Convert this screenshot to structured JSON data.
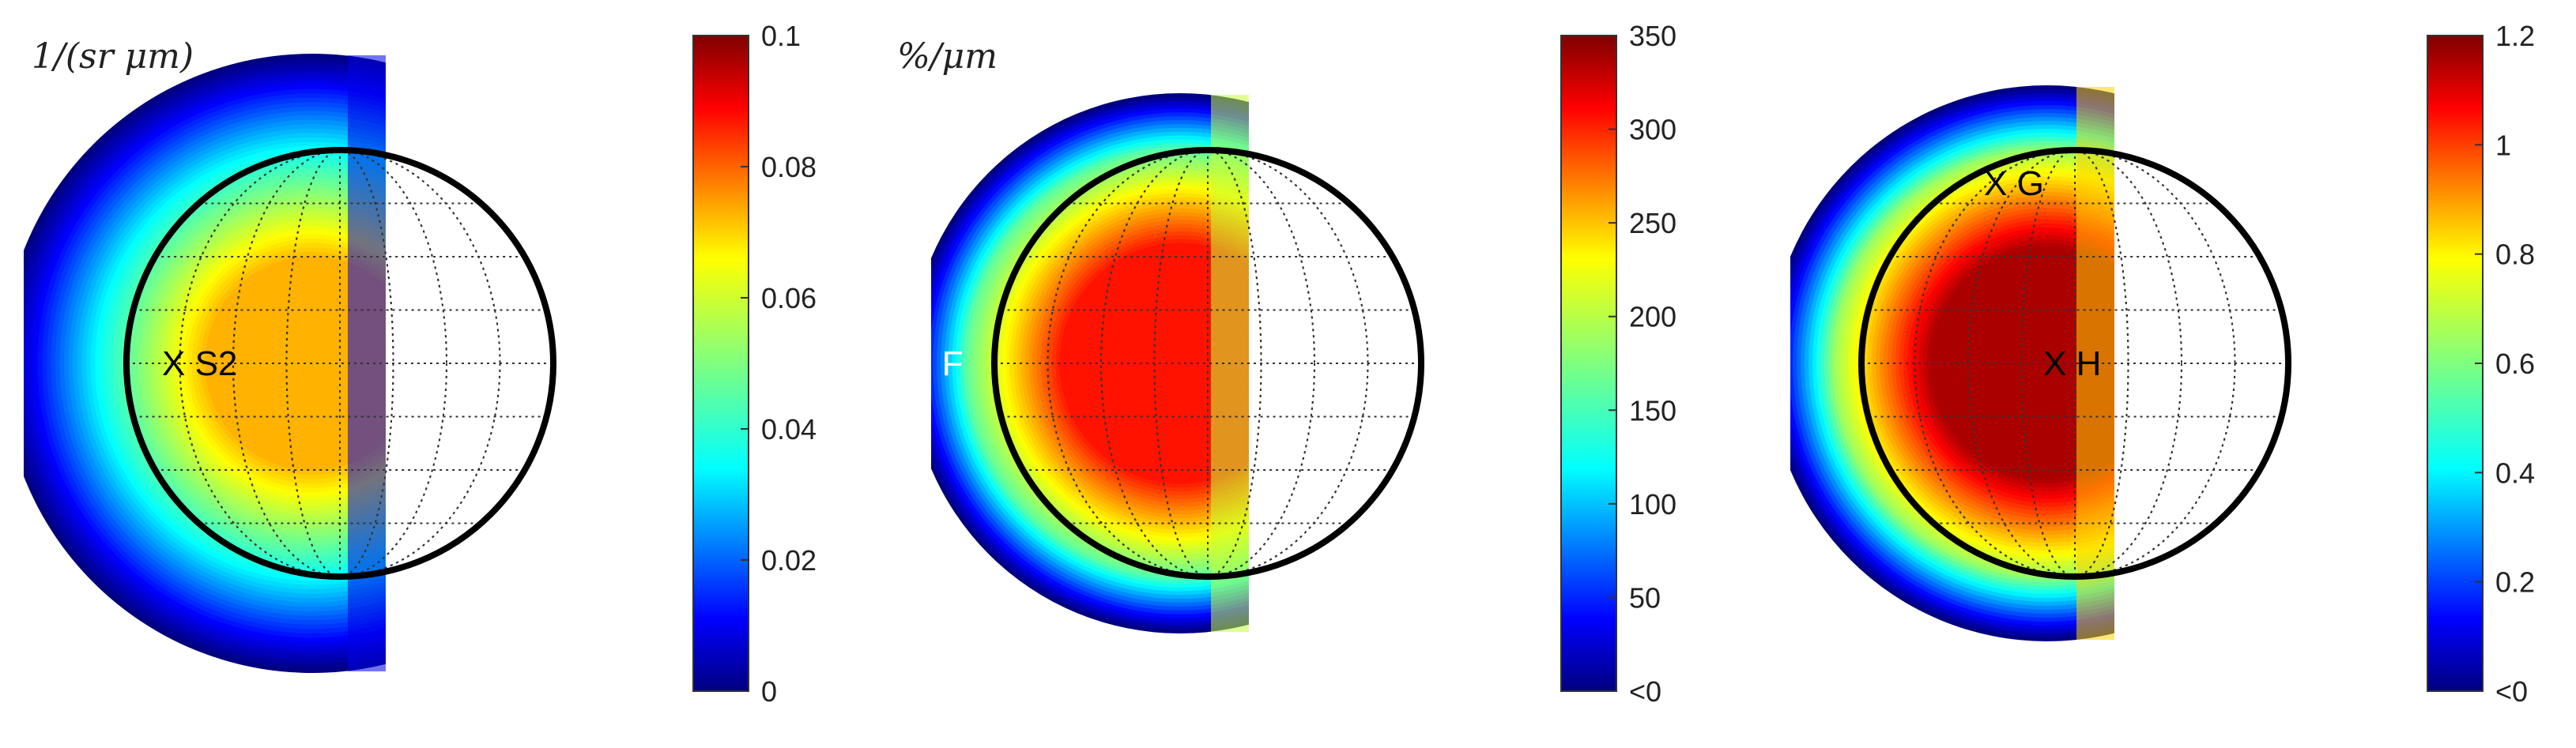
{
  "chart_data": [
    {
      "type": "heatmap",
      "subtype": "disk-map",
      "title": "",
      "unit_label": "1/(sr μm)",
      "colormap": "jet",
      "colorbar": {
        "min": 0,
        "max": 0.1,
        "ticks": [
          0,
          0.02,
          0.04,
          0.06,
          0.08,
          0.1
        ],
        "tick_labels": [
          "0",
          "0.02",
          "0.04",
          "0.06",
          "0.08",
          "0.1"
        ]
      },
      "field": {
        "peak": 0.07,
        "edge": 0.0,
        "terminator": 0.01
      },
      "marker": {
        "label": "X S2",
        "color": "#000000"
      }
    },
    {
      "type": "heatmap",
      "subtype": "disk-map",
      "title": "",
      "unit_label": "%/μm",
      "colormap": "jet",
      "colorbar": {
        "min": 0,
        "max": 350,
        "ticks": [
          0,
          50,
          100,
          150,
          200,
          250,
          300,
          350
        ],
        "tick_labels": [
          "<0",
          "50",
          "100",
          "150",
          "200",
          "250",
          "300",
          "350"
        ]
      },
      "field": {
        "peak": 300,
        "edge": 0,
        "terminator": 200
      },
      "marker": {
        "label": "X F",
        "color": "#ffffff"
      }
    },
    {
      "type": "heatmap",
      "subtype": "disk-map",
      "title": "",
      "unit_label": "",
      "colormap": "jet",
      "colorbar": {
        "min": 0,
        "max": 1.2,
        "ticks": [
          0,
          0.2,
          0.4,
          0.6,
          0.8,
          1,
          1.2
        ],
        "tick_labels": [
          "<0",
          "0.2",
          "0.4",
          "0.6",
          "0.8",
          "1",
          "1.2"
        ]
      },
      "field": {
        "peak": 1.15,
        "edge": 0,
        "terminator": 0.8
      },
      "markers": [
        {
          "label": "X G",
          "color": "#000000"
        },
        {
          "label": "X H",
          "color": "#000000"
        }
      ]
    }
  ]
}
